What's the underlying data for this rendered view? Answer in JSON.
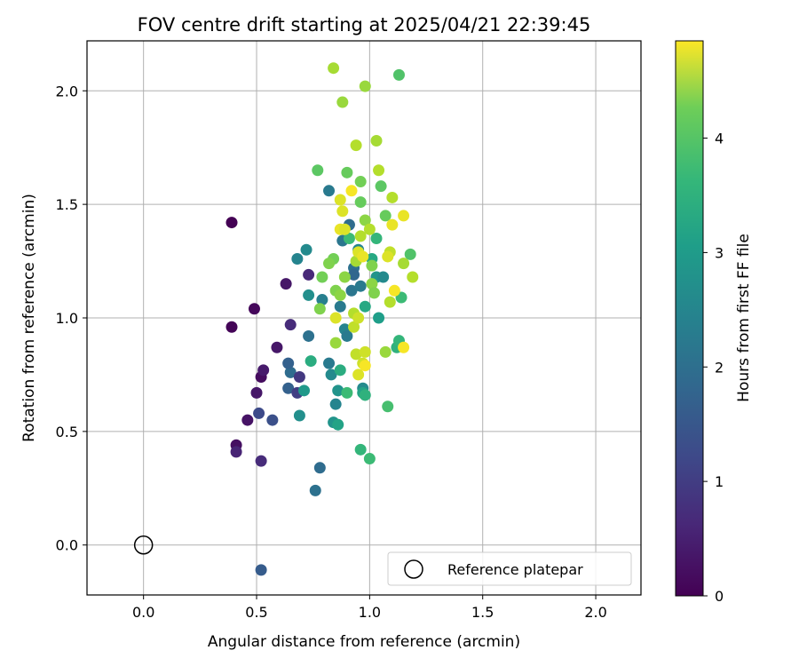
{
  "chart_data": {
    "type": "scatter",
    "title": "FOV centre drift starting at 2025/04/21 22:39:45",
    "xlabel": "Angular distance from reference (arcmin)",
    "ylabel": "Rotation from reference (arcmin)",
    "xlim": [
      -0.25,
      2.2
    ],
    "ylim": [
      -0.22,
      2.22
    ],
    "xticks": [
      "0.0",
      "0.5",
      "1.0",
      "1.5",
      "2.0"
    ],
    "xtick_values": [
      0.0,
      0.5,
      1.0,
      1.5,
      2.0
    ],
    "yticks": [
      "0.0",
      "0.5",
      "1.0",
      "1.5",
      "2.0"
    ],
    "ytick_values": [
      0.0,
      0.5,
      1.0,
      1.5,
      2.0
    ],
    "grid": true,
    "legend": {
      "placement": "lower-right",
      "label": "Reference platepar"
    },
    "reference_point": {
      "x": 0.0,
      "y": 0.0
    },
    "colorbar": {
      "label": "Hours from first FF file",
      "min": 0,
      "max": 4.85,
      "ticks": [
        "0",
        "1",
        "2",
        "3",
        "4"
      ],
      "tick_values": [
        0,
        1,
        2,
        3,
        4
      ],
      "colormap": "viridis"
    },
    "points": [
      {
        "x": 0.39,
        "y": 1.42,
        "h": 0.0
      },
      {
        "x": 0.39,
        "y": 0.96,
        "h": 0.05
      },
      {
        "x": 0.49,
        "y": 1.04,
        "h": 0.1
      },
      {
        "x": 0.41,
        "y": 0.44,
        "h": 0.2
      },
      {
        "x": 0.41,
        "y": 0.41,
        "h": 0.5
      },
      {
        "x": 0.52,
        "y": 0.37,
        "h": 0.6
      },
      {
        "x": 0.46,
        "y": 0.55,
        "h": 0.25
      },
      {
        "x": 0.5,
        "y": 0.67,
        "h": 0.3
      },
      {
        "x": 0.52,
        "y": 0.74,
        "h": 0.15
      },
      {
        "x": 0.53,
        "y": 0.77,
        "h": 0.35
      },
      {
        "x": 0.59,
        "y": 0.87,
        "h": 0.3
      },
      {
        "x": 0.63,
        "y": 1.15,
        "h": 0.3
      },
      {
        "x": 0.65,
        "y": 0.97,
        "h": 0.6
      },
      {
        "x": 0.73,
        "y": 1.19,
        "h": 0.55
      },
      {
        "x": 0.51,
        "y": 0.58,
        "h": 1.1
      },
      {
        "x": 0.57,
        "y": 0.55,
        "h": 1.2
      },
      {
        "x": 0.52,
        "y": -0.11,
        "h": 1.4
      },
      {
        "x": 0.64,
        "y": 0.69,
        "h": 1.5
      },
      {
        "x": 0.65,
        "y": 0.76,
        "h": 1.7
      },
      {
        "x": 0.64,
        "y": 0.8,
        "h": 1.5
      },
      {
        "x": 0.68,
        "y": 0.67,
        "h": 0.9
      },
      {
        "x": 0.69,
        "y": 0.74,
        "h": 0.8
      },
      {
        "x": 0.76,
        "y": 0.24,
        "h": 1.8
      },
      {
        "x": 0.78,
        "y": 0.34,
        "h": 1.7
      },
      {
        "x": 0.69,
        "y": 0.57,
        "h": 2.4
      },
      {
        "x": 0.71,
        "y": 0.68,
        "h": 2.6
      },
      {
        "x": 0.73,
        "y": 0.92,
        "h": 1.8
      },
      {
        "x": 0.68,
        "y": 1.26,
        "h": 2.2
      },
      {
        "x": 0.72,
        "y": 1.3,
        "h": 2.3
      },
      {
        "x": 0.73,
        "y": 1.1,
        "h": 2.4
      },
      {
        "x": 0.74,
        "y": 0.81,
        "h": 3.0
      },
      {
        "x": 0.79,
        "y": 1.08,
        "h": 2.1
      },
      {
        "x": 0.82,
        "y": 1.56,
        "h": 2.0
      },
      {
        "x": 0.82,
        "y": 0.8,
        "h": 2.0
      },
      {
        "x": 0.83,
        "y": 0.75,
        "h": 2.3
      },
      {
        "x": 0.84,
        "y": 0.54,
        "h": 2.5
      },
      {
        "x": 0.85,
        "y": 0.62,
        "h": 2.2
      },
      {
        "x": 0.86,
        "y": 0.68,
        "h": 2.5
      },
      {
        "x": 0.86,
        "y": 0.53,
        "h": 2.8
      },
      {
        "x": 0.87,
        "y": 0.77,
        "h": 3.0
      },
      {
        "x": 0.87,
        "y": 1.05,
        "h": 2.0
      },
      {
        "x": 0.88,
        "y": 1.34,
        "h": 1.9
      },
      {
        "x": 0.89,
        "y": 0.95,
        "h": 2.2
      },
      {
        "x": 0.9,
        "y": 0.92,
        "h": 2.0
      },
      {
        "x": 0.91,
        "y": 1.41,
        "h": 1.7
      },
      {
        "x": 0.92,
        "y": 1.12,
        "h": 1.9
      },
      {
        "x": 0.93,
        "y": 1.22,
        "h": 1.8
      },
      {
        "x": 0.93,
        "y": 1.19,
        "h": 1.6
      },
      {
        "x": 0.95,
        "y": 1.3,
        "h": 2.2
      },
      {
        "x": 0.96,
        "y": 1.14,
        "h": 2.0
      },
      {
        "x": 0.97,
        "y": 0.69,
        "h": 2.3
      },
      {
        "x": 0.97,
        "y": 0.67,
        "h": 2.8
      },
      {
        "x": 0.98,
        "y": 0.66,
        "h": 3.1
      },
      {
        "x": 0.98,
        "y": 1.05,
        "h": 2.9
      },
      {
        "x": 1.03,
        "y": 1.18,
        "h": 2.5
      },
      {
        "x": 1.06,
        "y": 1.18,
        "h": 2.3
      },
      {
        "x": 1.04,
        "y": 1.0,
        "h": 2.7
      },
      {
        "x": 1.01,
        "y": 1.26,
        "h": 2.9
      },
      {
        "x": 1.03,
        "y": 1.35,
        "h": 3.2
      },
      {
        "x": 0.91,
        "y": 1.35,
        "h": 3.3
      },
      {
        "x": 0.9,
        "y": 0.67,
        "h": 3.3
      },
      {
        "x": 0.96,
        "y": 0.42,
        "h": 3.2
      },
      {
        "x": 1.0,
        "y": 0.38,
        "h": 3.3
      },
      {
        "x": 1.08,
        "y": 0.61,
        "h": 3.4
      },
      {
        "x": 1.12,
        "y": 0.87,
        "h": 3.1
      },
      {
        "x": 1.13,
        "y": 0.9,
        "h": 3.2
      },
      {
        "x": 1.14,
        "y": 1.09,
        "h": 3.3
      },
      {
        "x": 1.18,
        "y": 1.28,
        "h": 3.5
      },
      {
        "x": 1.13,
        "y": 2.07,
        "h": 3.5
      },
      {
        "x": 1.07,
        "y": 1.45,
        "h": 3.7
      },
      {
        "x": 1.05,
        "y": 1.58,
        "h": 3.6
      },
      {
        "x": 0.77,
        "y": 1.65,
        "h": 3.6
      },
      {
        "x": 0.9,
        "y": 1.64,
        "h": 3.7
      },
      {
        "x": 0.96,
        "y": 1.6,
        "h": 3.8
      },
      {
        "x": 0.96,
        "y": 1.51,
        "h": 3.7
      },
      {
        "x": 0.84,
        "y": 1.26,
        "h": 3.8
      },
      {
        "x": 0.82,
        "y": 1.24,
        "h": 3.9
      },
      {
        "x": 0.79,
        "y": 1.18,
        "h": 3.8
      },
      {
        "x": 0.78,
        "y": 1.04,
        "h": 3.9
      },
      {
        "x": 0.85,
        "y": 1.12,
        "h": 3.9
      },
      {
        "x": 0.87,
        "y": 1.1,
        "h": 4.0
      },
      {
        "x": 0.89,
        "y": 1.18,
        "h": 4.0
      },
      {
        "x": 0.98,
        "y": 1.43,
        "h": 4.0
      },
      {
        "x": 1.01,
        "y": 1.23,
        "h": 3.9
      },
      {
        "x": 1.01,
        "y": 1.15,
        "h": 4.0
      },
      {
        "x": 1.02,
        "y": 1.11,
        "h": 3.9
      },
      {
        "x": 1.07,
        "y": 0.85,
        "h": 4.1
      },
      {
        "x": 0.85,
        "y": 0.89,
        "h": 4.1
      },
      {
        "x": 0.88,
        "y": 1.95,
        "h": 4.1
      },
      {
        "x": 0.98,
        "y": 2.02,
        "h": 4.1
      },
      {
        "x": 0.84,
        "y": 2.1,
        "h": 4.2
      },
      {
        "x": 1.03,
        "y": 1.78,
        "h": 4.2
      },
      {
        "x": 0.94,
        "y": 1.76,
        "h": 4.3
      },
      {
        "x": 1.04,
        "y": 1.65,
        "h": 4.3
      },
      {
        "x": 1.0,
        "y": 1.39,
        "h": 4.3
      },
      {
        "x": 0.94,
        "y": 1.25,
        "h": 4.2
      },
      {
        "x": 0.96,
        "y": 1.36,
        "h": 4.3
      },
      {
        "x": 1.1,
        "y": 1.53,
        "h": 4.3
      },
      {
        "x": 1.09,
        "y": 1.29,
        "h": 4.4
      },
      {
        "x": 1.09,
        "y": 1.07,
        "h": 4.3
      },
      {
        "x": 1.15,
        "y": 1.24,
        "h": 4.2
      },
      {
        "x": 1.19,
        "y": 1.18,
        "h": 4.3
      },
      {
        "x": 0.94,
        "y": 0.84,
        "h": 4.4
      },
      {
        "x": 0.93,
        "y": 0.96,
        "h": 4.4
      },
      {
        "x": 0.98,
        "y": 0.85,
        "h": 4.5
      },
      {
        "x": 0.97,
        "y": 0.8,
        "h": 4.5
      },
      {
        "x": 0.95,
        "y": 0.75,
        "h": 4.6
      },
      {
        "x": 0.93,
        "y": 1.02,
        "h": 4.3
      },
      {
        "x": 0.95,
        "y": 1.0,
        "h": 4.5
      },
      {
        "x": 0.85,
        "y": 1.0,
        "h": 4.6
      },
      {
        "x": 0.87,
        "y": 1.52,
        "h": 4.6
      },
      {
        "x": 0.88,
        "y": 1.47,
        "h": 4.6
      },
      {
        "x": 0.87,
        "y": 1.39,
        "h": 4.7
      },
      {
        "x": 0.89,
        "y": 1.39,
        "h": 4.6
      },
      {
        "x": 0.92,
        "y": 1.56,
        "h": 4.8
      },
      {
        "x": 0.95,
        "y": 1.29,
        "h": 4.6
      },
      {
        "x": 0.97,
        "y": 1.27,
        "h": 4.7
      },
      {
        "x": 1.08,
        "y": 1.27,
        "h": 4.6
      },
      {
        "x": 1.1,
        "y": 1.41,
        "h": 4.7
      },
      {
        "x": 1.15,
        "y": 1.45,
        "h": 4.7
      },
      {
        "x": 1.11,
        "y": 1.12,
        "h": 4.8
      },
      {
        "x": 1.15,
        "y": 0.87,
        "h": 4.8
      },
      {
        "x": 0.98,
        "y": 0.79,
        "h": 4.8
      }
    ]
  }
}
